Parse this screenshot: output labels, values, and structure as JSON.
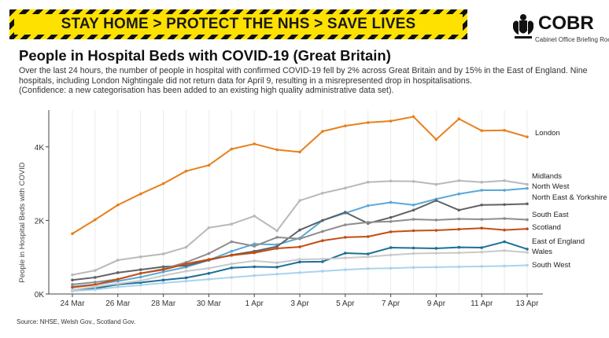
{
  "banner": {
    "text": "STAY HOME > PROTECT THE NHS > SAVE LIVES"
  },
  "brand": {
    "name": "COBR",
    "subtitle": "Cabinet Office Briefing Rooms",
    "crest_icon": "royal-coat-of-arms-icon"
  },
  "page": {
    "title": "People in Hospital Beds with COVID-19 (Great Britain)",
    "desc_line1": "Over the last 24 hours, the number of people in hospital with confirmed COVID-19 fell by 2% across Great Britain and by 15% in the East of England. Nine",
    "desc_line2": "hospitals, including London Nightingale did not return data for April 9, resulting in a misrepresented drop in hospitalisations.",
    "desc_line3": "(Confidence: a new categorisation has been added to an existing high quality administrative data set).",
    "source": "Source: NHSE, Welsh Gov., Scotland Gov."
  },
  "chart_data": {
    "type": "line",
    "title": "",
    "xlabel": "",
    "ylabel": "People in Hospital Beds with COVID",
    "ylim": [
      0,
      5000
    ],
    "yticks": [
      {
        "value": 0,
        "label": "0K"
      },
      {
        "value": 2000,
        "label": "2K"
      },
      {
        "value": 4000,
        "label": "4K"
      }
    ],
    "x": [
      "24 Mar",
      "25 Mar",
      "26 Mar",
      "27 Mar",
      "28 Mar",
      "29 Mar",
      "30 Mar",
      "31 Mar",
      "1 Apr",
      "2 Apr",
      "3 Apr",
      "4 Apr",
      "5 Apr",
      "6 Apr",
      "7 Apr",
      "8 Apr",
      "9 Apr",
      "10 Apr",
      "11 Apr",
      "12 Apr",
      "13 Apr"
    ],
    "xtick_labels": [
      "24 Mar",
      "26 Mar",
      "28 Mar",
      "30 Mar",
      "1 Apr",
      "3 Apr",
      "5 Apr",
      "7 Apr",
      "9 Apr",
      "11 Apr",
      "13 Apr"
    ],
    "grid": "vertical",
    "legend": "direct labels at line ends (right)",
    "series": [
      {
        "name": "London",
        "color": "#e8801a",
        "values": [
          1640,
          2020,
          2420,
          2720,
          3000,
          3340,
          3500,
          3940,
          4080,
          3920,
          3860,
          4420,
          4570,
          4660,
          4700,
          4820,
          4200,
          4760,
          4440,
          4450,
          4270
        ]
      },
      {
        "name": "Midlands",
        "color": "#b9b9b9",
        "values": [
          520,
          640,
          920,
          1010,
          1090,
          1270,
          1800,
          1900,
          2120,
          1720,
          2540,
          2740,
          2880,
          3040,
          3070,
          3060,
          2980,
          3080,
          3040,
          3080,
          2980
        ]
      },
      {
        "name": "North West",
        "color": "#5aa8d6",
        "values": [
          200,
          260,
          350,
          460,
          600,
          730,
          920,
          1160,
          1360,
          1340,
          1520,
          2000,
          2200,
          2400,
          2490,
          2420,
          2580,
          2720,
          2820,
          2820,
          2870
        ]
      },
      {
        "name": "North East & Yorkshire",
        "color": "#5f6266",
        "values": [
          380,
          450,
          580,
          660,
          740,
          770,
          920,
          1060,
          1160,
          1290,
          1740,
          2000,
          2220,
          1920,
          2080,
          2280,
          2540,
          2280,
          2420,
          2430,
          2450
        ]
      },
      {
        "name": "South East",
        "color": "#8d8d8d",
        "values": [
          260,
          320,
          400,
          560,
          680,
          860,
          1100,
          1420,
          1300,
          1540,
          1500,
          1700,
          1880,
          1950,
          1970,
          2030,
          2010,
          2040,
          2030,
          2050,
          2020
        ]
      },
      {
        "name": "Scotland",
        "color": "#c24e13",
        "values": [
          180,
          250,
          400,
          560,
          660,
          820,
          940,
          1050,
          1120,
          1240,
          1280,
          1450,
          1540,
          1560,
          1690,
          1720,
          1730,
          1760,
          1790,
          1740,
          1770
        ]
      },
      {
        "name": "East of England",
        "color": "#1f6f96",
        "values": [
          80,
          150,
          260,
          310,
          380,
          440,
          560,
          710,
          740,
          730,
          870,
          880,
          1110,
          1090,
          1260,
          1250,
          1240,
          1270,
          1260,
          1420,
          1220
        ]
      },
      {
        "name": "Wales",
        "color": "#c9c9c9",
        "values": [
          110,
          200,
          280,
          360,
          500,
          620,
          700,
          820,
          900,
          850,
          940,
          950,
          980,
          1010,
          1060,
          1100,
          1110,
          1120,
          1140,
          1180,
          1130
        ]
      },
      {
        "name": "South West",
        "color": "#a9d3ee",
        "values": [
          80,
          120,
          190,
          240,
          300,
          350,
          400,
          450,
          500,
          540,
          580,
          620,
          660,
          690,
          700,
          720,
          730,
          740,
          750,
          760,
          780
        ]
      }
    ],
    "label_positions": [
      "London",
      "Midlands",
      "North West",
      "North East & Yorkshire",
      "South East",
      "Scotland",
      "East of England",
      "Wales",
      "South West"
    ]
  }
}
